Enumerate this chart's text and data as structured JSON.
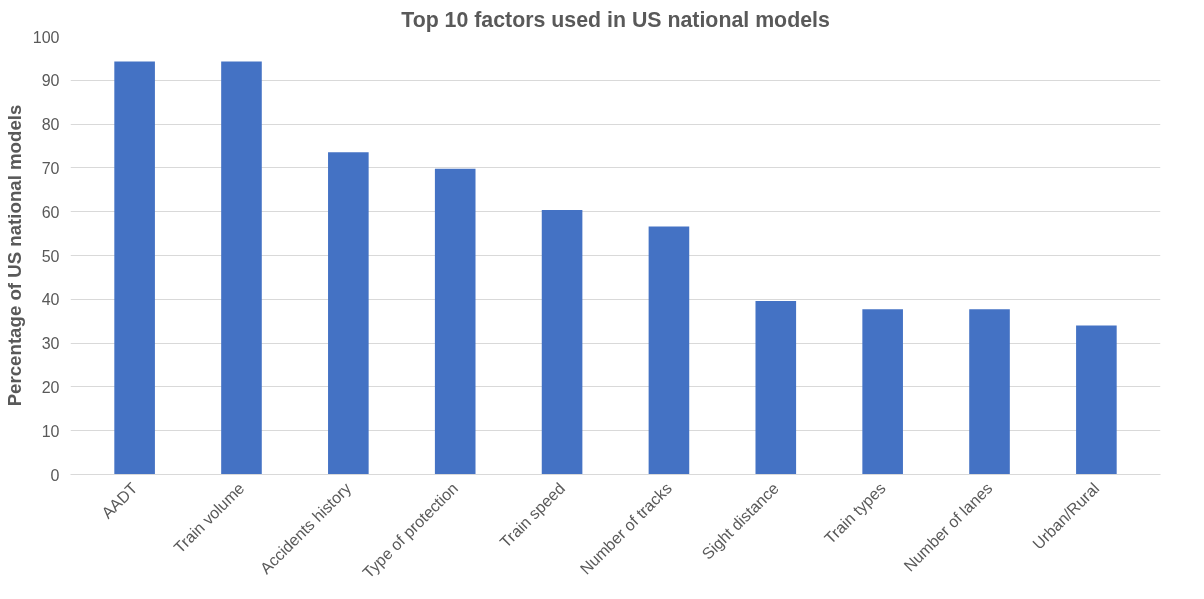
{
  "chart_data": {
    "type": "bar",
    "title": "Top 10 factors used in US national models",
    "ylabel": "Percentage of US national models",
    "categories": [
      "AADT",
      "Train volume",
      "Accidents history",
      "Type of protection",
      "Train speed",
      "Number of tracks",
      "Sight distance",
      "Train types",
      "Number of lanes",
      "Urban/Rural"
    ],
    "values": [
      94.3,
      94.3,
      73.6,
      69.8,
      60.4,
      56.6,
      39.6,
      37.7,
      37.7,
      34
    ],
    "color": "#4472c4",
    "ylim": [
      0,
      100
    ],
    "yticks": [
      0,
      10,
      20,
      30,
      40,
      50,
      60,
      70,
      80,
      90,
      100
    ],
    "grid": "y"
  }
}
